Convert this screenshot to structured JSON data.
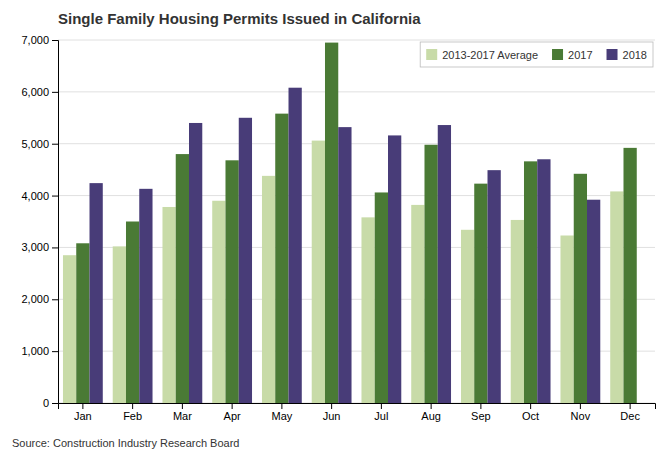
{
  "chart_data": {
    "type": "bar",
    "title": "Single Family Housing Permits Issued in California",
    "annotations": [
      "Source: Construction Industry Research Board"
    ],
    "categories": [
      "Jan",
      "Feb",
      "Mar",
      "Apr",
      "May",
      "Jun",
      "Jul",
      "Aug",
      "Sep",
      "Oct",
      "Nov",
      "Dec"
    ],
    "series": [
      {
        "name": "2013-2017 Average",
        "color": "#c8dba8",
        "values": [
          2850,
          3020,
          3780,
          3900,
          4380,
          5060,
          3580,
          3820,
          3340,
          3530,
          3230,
          4080
        ]
      },
      {
        "name": "2017",
        "color": "#4a7a35",
        "values": [
          3080,
          3500,
          4800,
          4680,
          5580,
          6950,
          4060,
          4980,
          4230,
          4660,
          4420,
          4920
        ]
      },
      {
        "name": "2018",
        "color": "#483c78",
        "values": [
          4240,
          4130,
          5400,
          5500,
          6080,
          5320,
          5160,
          5360,
          4490,
          4700,
          3920,
          null
        ]
      }
    ],
    "ylim": [
      0,
      7000
    ],
    "yticks": [
      0,
      {
        "value": 1000,
        "label": "1,000"
      },
      {
        "value": 2000,
        "label": "2,000"
      },
      {
        "value": 3000,
        "label": "3,000"
      },
      {
        "value": 4000,
        "label": "4,000"
      },
      {
        "value": 5000,
        "label": "5,000"
      },
      {
        "value": 6000,
        "label": "6,000"
      },
      {
        "value": 7000,
        "label": "7,000"
      }
    ],
    "grid": true,
    "legend": "upper right"
  }
}
